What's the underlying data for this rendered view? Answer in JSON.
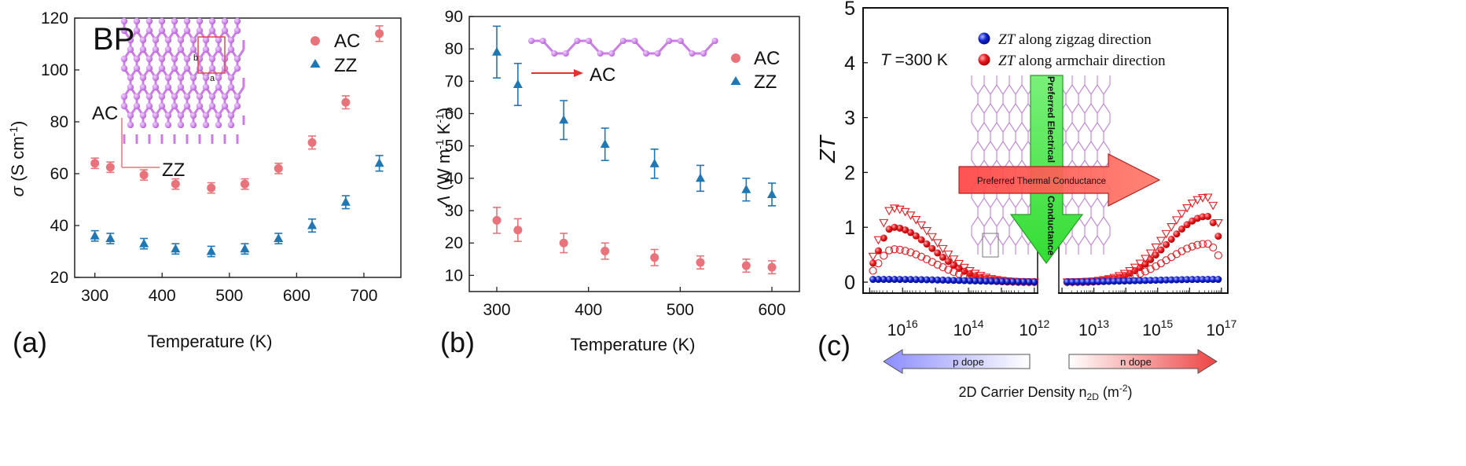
{
  "colors": {
    "ac": "#e8737b",
    "zz": "#1f77b4",
    "lattice": "#cc7de6",
    "zt_red": "#e8191f",
    "zt_blue": "#1020d0",
    "arrow_red": "#ee5555",
    "arrow_green": "#55ee55",
    "arrow_blue_light": "#8888ff"
  },
  "chart_data": [
    {
      "type": "scatter",
      "panel_label": "(a)",
      "xlabel": "Temperature (K)",
      "ylabel": "σ (S cm⁻¹)",
      "ylabel_symbol": "σ",
      "ylabel_unit": "(S cm",
      "ylabel_exp": "-1",
      "ylabel_close": ")",
      "xlim": [
        270,
        755
      ],
      "ylim": [
        20,
        120
      ],
      "xticks": [
        "300",
        "400",
        "500",
        "600",
        "700"
      ],
      "xtick_values": [
        300,
        400,
        500,
        600,
        700
      ],
      "yticks": [
        "20",
        "40",
        "60",
        "80",
        "100",
        "120"
      ],
      "ytick_values": [
        20,
        40,
        60,
        80,
        100,
        120
      ],
      "inset_text": "BP",
      "inset_axis_ac": "AC",
      "inset_axis_zz": "ZZ",
      "inset_cell_labels": [
        "b",
        "a"
      ],
      "legend": [
        "AC",
        "ZZ"
      ],
      "series": [
        {
          "name": "AC",
          "marker": "circle",
          "x": [
            300,
            323,
            373,
            420,
            473,
            523,
            573,
            623,
            673,
            723
          ],
          "y": [
            64,
            62.5,
            59.5,
            56,
            54.5,
            56,
            62,
            72,
            87.5,
            114
          ],
          "err": [
            2,
            2,
            2,
            2,
            2,
            2,
            2,
            2.5,
            2.5,
            3
          ]
        },
        {
          "name": "ZZ",
          "marker": "triangle",
          "x": [
            300,
            323,
            373,
            420,
            473,
            523,
            573,
            623,
            673,
            723
          ],
          "y": [
            36,
            35,
            33,
            31,
            30,
            31,
            35,
            40,
            49,
            64
          ],
          "err": [
            2,
            2,
            2,
            2,
            2,
            2,
            2,
            2.5,
            2.5,
            3
          ]
        }
      ]
    },
    {
      "type": "scatter",
      "panel_label": "(b)",
      "xlabel": "Temperature (K)",
      "ylabel": "Λ (W m⁻¹ K⁻¹)",
      "ylabel_symbol": "Λ",
      "ylabel_unit1": "(W m",
      "ylabel_exp1": "-1",
      "ylabel_unit2": " K",
      "ylabel_exp2": "-1",
      "ylabel_close": ")",
      "xlim": [
        270,
        630
      ],
      "ylim": [
        5,
        90
      ],
      "xticks": [
        "300",
        "400",
        "500",
        "600"
      ],
      "xtick_values": [
        300,
        400,
        500,
        600
      ],
      "yticks": [
        "10",
        "20",
        "30",
        "40",
        "50",
        "60",
        "70",
        "80",
        "90"
      ],
      "ytick_values": [
        10,
        20,
        30,
        40,
        50,
        60,
        70,
        80,
        90
      ],
      "inset_arrow_label": "AC",
      "legend": [
        "AC",
        "ZZ"
      ],
      "series": [
        {
          "name": "AC",
          "marker": "circle",
          "x": [
            300,
            323,
            373,
            418,
            472,
            522,
            572,
            600
          ],
          "y": [
            27,
            24,
            20,
            17.5,
            15.5,
            14,
            13,
            12.5
          ],
          "err": [
            4,
            3.5,
            3,
            2.5,
            2.5,
            2,
            2,
            2
          ]
        },
        {
          "name": "ZZ",
          "marker": "triangle",
          "x": [
            300,
            323,
            373,
            418,
            472,
            522,
            572,
            600
          ],
          "y": [
            79,
            69,
            58,
            50.5,
            44.5,
            40,
            36.5,
            35
          ],
          "err": [
            8,
            6.5,
            6,
            5,
            4.5,
            4,
            3.5,
            3.5
          ]
        }
      ]
    },
    {
      "type": "scatter",
      "panel_label": "(c)",
      "ylabel": "ZT",
      "ylim": [
        -0.2,
        5
      ],
      "yticks": [
        "0",
        "1",
        "2",
        "3",
        "4",
        "5"
      ],
      "ytick_values": [
        0,
        1,
        2,
        3,
        4,
        5
      ],
      "annotation_T": "T =300 K",
      "annotation_T_italic": "T",
      "annotation_T_rest": " =300 K",
      "legend": [
        "ZT along zigzag direction",
        "ZT along armchair direction"
      ],
      "legend_italic": "ZT",
      "legend_rest": [
        " along zigzag direction",
        " along armchair direction"
      ],
      "arrow_thermal": "Preferred Thermal Conductance",
      "arrow_electrical_1": "Preferred Electrical",
      "arrow_electrical_2": "Conductance",
      "p_dope": "p dope",
      "n_dope": "n dope",
      "xlabel": "2D Carrier Density n2D (m⁻²)",
      "xlabel_main": "2D Carrier Density n",
      "xlabel_sub": "2D",
      "xlabel_unit": " (m",
      "xlabel_exp": "-2",
      "xlabel_close": ")",
      "left_x_axis": {
        "scale": "log",
        "reversed": true,
        "xlim_log10": [
          17.2,
          11.9
        ],
        "xticks_base": [
          "10",
          "10",
          "10"
        ],
        "xticks_exp": [
          "16",
          "14",
          "12"
        ],
        "xtick_log10": [
          16,
          14,
          12
        ]
      },
      "right_x_axis": {
        "scale": "log",
        "xlim_log10": [
          11.9,
          17.2
        ],
        "xticks_base": [
          "10",
          "10",
          "10"
        ],
        "xticks_exp": [
          "13",
          "15",
          "17"
        ],
        "xtick_log10": [
          13,
          15,
          17
        ]
      },
      "series": [
        {
          "name": "p-side armchair (filled circles)",
          "side": "left",
          "marker": "circle-filled",
          "color": "red",
          "peak_log10": 16.3,
          "peak": 1.0,
          "width": 0.55
        },
        {
          "name": "p-side armchair (triangles)",
          "side": "left",
          "marker": "triangle-down-open",
          "color": "red",
          "peak_log10": 16.3,
          "peak": 1.35,
          "width": 0.55
        },
        {
          "name": "p-side armchair (open circles)",
          "side": "left",
          "marker": "circle-open",
          "color": "red",
          "peak_log10": 16.3,
          "peak": 0.6,
          "width": 0.55
        },
        {
          "name": "p-side zigzag",
          "side": "left",
          "marker": "circle-filled",
          "color": "blue",
          "peak_log10": 16.3,
          "peak": 0.05,
          "width": 0.8
        },
        {
          "name": "n-side armchair (filled circles)",
          "side": "right",
          "marker": "circle-filled",
          "color": "red",
          "peak_log10": 16.55,
          "peak": 1.2,
          "width": 0.55
        },
        {
          "name": "n-side armchair (triangles)",
          "side": "right",
          "marker": "triangle-down-open",
          "color": "red",
          "peak_log10": 16.55,
          "peak": 1.55,
          "width": 0.55
        },
        {
          "name": "n-side armchair (open circles)",
          "side": "right",
          "marker": "circle-open",
          "color": "red",
          "peak_log10": 16.55,
          "peak": 0.7,
          "width": 0.55
        },
        {
          "name": "n-side zigzag",
          "side": "right",
          "marker": "circle-filled",
          "color": "blue",
          "peak_log10": 16.6,
          "peak": 0.05,
          "width": 0.8
        }
      ]
    }
  ]
}
